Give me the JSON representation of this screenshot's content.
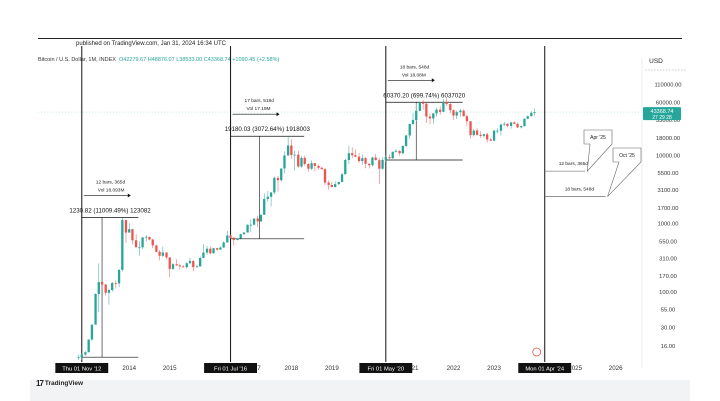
{
  "header": {
    "published": "published on TradingView.com, Jan 31, 2024 16:34 UTC",
    "symbol": "Bitcoin / U.S. Dollar, 1M, INDEX",
    "open": "O42279.67",
    "high": "H48876.07",
    "low": "L38533.00",
    "close": "C43368.74",
    "change": "+1090.45 (+2.58%)"
  },
  "footer": {
    "logo_text": "TradingView",
    "logo_mark": "17"
  },
  "chart_data": {
    "type": "candlestick",
    "currency_label": "USD",
    "y_scale": "log",
    "ylim": [
      10,
      220000
    ],
    "y_ticks": [
      {
        "value": 110000,
        "label": "110000.00"
      },
      {
        "value": 60000,
        "label": "60000.00"
      },
      {
        "value": 33000,
        "label": "33000.00"
      },
      {
        "value": 18000,
        "label": "18000.00"
      },
      {
        "value": 10000,
        "label": "10000.00"
      },
      {
        "value": 5500,
        "label": "5500.00"
      },
      {
        "value": 3100,
        "label": "3100.00"
      },
      {
        "value": 1700,
        "label": "1700.00"
      },
      {
        "value": 1000,
        "label": "1000.00"
      },
      {
        "value": 550,
        "label": "550.00"
      },
      {
        "value": 310,
        "label": "310.00"
      },
      {
        "value": 170,
        "label": "170.00"
      },
      {
        "value": 100,
        "label": "100.00"
      },
      {
        "value": 55,
        "label": "55.00"
      },
      {
        "value": 30,
        "label": "30.00"
      },
      {
        "value": 16,
        "label": "16.00"
      }
    ],
    "price_label": {
      "value": 43368.74,
      "text": "43368.74",
      "subtext": "27 29 28"
    },
    "x_ticks": [
      {
        "t": 2014,
        "label": "2014"
      },
      {
        "t": 2015,
        "label": "2015"
      },
      {
        "t": 2018,
        "label": "2018"
      },
      {
        "t": 2019,
        "label": "2019"
      },
      {
        "t": 2022,
        "label": "2022"
      },
      {
        "t": 2023,
        "label": "2023"
      },
      {
        "t": 2025,
        "label": "2025"
      },
      {
        "t": 2026,
        "label": "2026"
      }
    ],
    "x_tick_fragments": [
      {
        "t": 2016.35,
        "label": "2"
      },
      {
        "t": 2017.2,
        "label": "7"
      },
      {
        "t": 2021.05,
        "label": "21"
      }
    ],
    "xlim": [
      2011.75,
      2026.6
    ],
    "vertical_markers": [
      {
        "t": 2012.83,
        "label": "Thu 01 Nov '12"
      },
      {
        "t": 2016.5,
        "label": "Fri 01 Jul '16"
      },
      {
        "t": 2020.33,
        "label": "Fri 01 May '20"
      },
      {
        "t": 2024.25,
        "label": "Mon 01 Apr '24"
      }
    ],
    "measurements": [
      {
        "t0": 2012.83,
        "t1": 2013.83,
        "low": 11,
        "high": 1231,
        "bars": "12 bars, 365d",
        "vol": "Vol 18.093M",
        "value_text": "1230.82 (11009.49%) 123082"
      },
      {
        "t0": 2016.5,
        "t1": 2017.92,
        "low": 600,
        "high": 19180,
        "bars": "17 bars, 518d",
        "vol": "Vol 17.19M",
        "value_text": "19180.03 (3072.64%) 1918003"
      },
      {
        "t0": 2020.33,
        "t1": 2021.83,
        "low": 8600,
        "high": 60370,
        "bars": "18 bars, 548d",
        "vol": "Vol 18.08M",
        "value_text": "60370.20 (699.74%) 6037020"
      }
    ],
    "projections": [
      {
        "t0": 2024.25,
        "t1": 2025.25,
        "price": 5900,
        "bars": "12 bars, 365d",
        "callout": "Apr '25"
      },
      {
        "t0": 2024.25,
        "t1": 2025.75,
        "price": 2500,
        "bars": "18 bars, 548d",
        "callout": "Oct '25"
      }
    ],
    "colors": {
      "up": "#26a69a",
      "down": "#ef5350",
      "marker": "#111111",
      "price_label": "#26a69a"
    },
    "series": [
      {
        "t": 2012.75,
        "o": 11,
        "h": 12,
        "l": 10,
        "c": 11
      },
      {
        "t": 2012.83,
        "o": 11,
        "h": 12.5,
        "l": 10,
        "c": 12
      },
      {
        "t": 2012.92,
        "o": 12,
        "h": 13.5,
        "l": 11.5,
        "c": 13
      },
      {
        "t": 2013.0,
        "o": 13,
        "h": 20,
        "l": 13,
        "c": 20
      },
      {
        "t": 2013.08,
        "o": 20,
        "h": 33,
        "l": 19,
        "c": 33
      },
      {
        "t": 2013.17,
        "o": 33,
        "h": 95,
        "l": 33,
        "c": 93
      },
      {
        "t": 2013.25,
        "o": 93,
        "h": 260,
        "l": 50,
        "c": 139
      },
      {
        "t": 2013.33,
        "o": 139,
        "h": 140,
        "l": 105,
        "c": 128
      },
      {
        "t": 2013.42,
        "o": 128,
        "h": 130,
        "l": 88,
        "c": 97
      },
      {
        "t": 2013.5,
        "o": 97,
        "h": 110,
        "l": 65,
        "c": 106
      },
      {
        "t": 2013.58,
        "o": 106,
        "h": 140,
        "l": 100,
        "c": 135
      },
      {
        "t": 2013.67,
        "o": 135,
        "h": 147,
        "l": 112,
        "c": 133
      },
      {
        "t": 2013.75,
        "o": 133,
        "h": 215,
        "l": 117,
        "c": 210
      },
      {
        "t": 2013.83,
        "o": 210,
        "h": 1231,
        "l": 200,
        "c": 1130
      },
      {
        "t": 2013.92,
        "o": 1130,
        "h": 1150,
        "l": 520,
        "c": 740
      },
      {
        "t": 2014.0,
        "o": 740,
        "h": 1020,
        "l": 740,
        "c": 830
      },
      {
        "t": 2014.08,
        "o": 830,
        "h": 840,
        "l": 500,
        "c": 570
      },
      {
        "t": 2014.17,
        "o": 570,
        "h": 700,
        "l": 450,
        "c": 450
      },
      {
        "t": 2014.25,
        "o": 450,
        "h": 550,
        "l": 340,
        "c": 450
      },
      {
        "t": 2014.33,
        "o": 450,
        "h": 630,
        "l": 420,
        "c": 630
      },
      {
        "t": 2014.42,
        "o": 630,
        "h": 680,
        "l": 550,
        "c": 640
      },
      {
        "t": 2014.5,
        "o": 640,
        "h": 640,
        "l": 570,
        "c": 585
      },
      {
        "t": 2014.58,
        "o": 585,
        "h": 600,
        "l": 440,
        "c": 480
      },
      {
        "t": 2014.67,
        "o": 480,
        "h": 490,
        "l": 380,
        "c": 386
      },
      {
        "t": 2014.75,
        "o": 386,
        "h": 410,
        "l": 290,
        "c": 338
      },
      {
        "t": 2014.83,
        "o": 338,
        "h": 460,
        "l": 325,
        "c": 378
      },
      {
        "t": 2014.92,
        "o": 378,
        "h": 380,
        "l": 300,
        "c": 320
      },
      {
        "t": 2015.0,
        "o": 320,
        "h": 320,
        "l": 165,
        "c": 217
      },
      {
        "t": 2015.08,
        "o": 217,
        "h": 265,
        "l": 210,
        "c": 254
      },
      {
        "t": 2015.17,
        "o": 254,
        "h": 300,
        "l": 240,
        "c": 244
      },
      {
        "t": 2015.25,
        "o": 244,
        "h": 260,
        "l": 215,
        "c": 236
      },
      {
        "t": 2015.33,
        "o": 236,
        "h": 245,
        "l": 225,
        "c": 230
      },
      {
        "t": 2015.42,
        "o": 230,
        "h": 270,
        "l": 220,
        "c": 263
      },
      {
        "t": 2015.5,
        "o": 263,
        "h": 315,
        "l": 255,
        "c": 284
      },
      {
        "t": 2015.58,
        "o": 284,
        "h": 290,
        "l": 200,
        "c": 230
      },
      {
        "t": 2015.67,
        "o": 230,
        "h": 250,
        "l": 225,
        "c": 236
      },
      {
        "t": 2015.75,
        "o": 236,
        "h": 330,
        "l": 235,
        "c": 314
      },
      {
        "t": 2015.83,
        "o": 314,
        "h": 500,
        "l": 310,
        "c": 377
      },
      {
        "t": 2015.92,
        "o": 377,
        "h": 470,
        "l": 350,
        "c": 430
      },
      {
        "t": 2016.0,
        "o": 430,
        "h": 460,
        "l": 355,
        "c": 368
      },
      {
        "t": 2016.08,
        "o": 368,
        "h": 440,
        "l": 365,
        "c": 437
      },
      {
        "t": 2016.17,
        "o": 437,
        "h": 440,
        "l": 400,
        "c": 416
      },
      {
        "t": 2016.25,
        "o": 416,
        "h": 460,
        "l": 413,
        "c": 448
      },
      {
        "t": 2016.33,
        "o": 448,
        "h": 550,
        "l": 440,
        "c": 530
      },
      {
        "t": 2016.42,
        "o": 530,
        "h": 780,
        "l": 530,
        "c": 670
      },
      {
        "t": 2016.5,
        "o": 670,
        "h": 700,
        "l": 600,
        "c": 624
      },
      {
        "t": 2016.58,
        "o": 624,
        "h": 630,
        "l": 480,
        "c": 575
      },
      {
        "t": 2016.67,
        "o": 575,
        "h": 620,
        "l": 570,
        "c": 609
      },
      {
        "t": 2016.75,
        "o": 609,
        "h": 720,
        "l": 605,
        "c": 700
      },
      {
        "t": 2016.83,
        "o": 700,
        "h": 750,
        "l": 690,
        "c": 742
      },
      {
        "t": 2016.92,
        "o": 742,
        "h": 975,
        "l": 740,
        "c": 963
      },
      {
        "t": 2017.0,
        "o": 963,
        "h": 1150,
        "l": 750,
        "c": 965
      },
      {
        "t": 2017.08,
        "o": 965,
        "h": 1200,
        "l": 940,
        "c": 1190
      },
      {
        "t": 2017.17,
        "o": 1190,
        "h": 1300,
        "l": 890,
        "c": 1080
      },
      {
        "t": 2017.25,
        "o": 1080,
        "h": 1350,
        "l": 1070,
        "c": 1350
      },
      {
        "t": 2017.33,
        "o": 1350,
        "h": 2760,
        "l": 1340,
        "c": 2300
      },
      {
        "t": 2017.42,
        "o": 2300,
        "h": 3000,
        "l": 2100,
        "c": 2480
      },
      {
        "t": 2017.5,
        "o": 2480,
        "h": 2900,
        "l": 1800,
        "c": 2870
      },
      {
        "t": 2017.58,
        "o": 2870,
        "h": 4900,
        "l": 2700,
        "c": 4700
      },
      {
        "t": 2017.67,
        "o": 4700,
        "h": 5000,
        "l": 2950,
        "c": 4340
      },
      {
        "t": 2017.75,
        "o": 4340,
        "h": 6470,
        "l": 4150,
        "c": 6450
      },
      {
        "t": 2017.83,
        "o": 6450,
        "h": 11500,
        "l": 5500,
        "c": 10000
      },
      {
        "t": 2017.92,
        "o": 10000,
        "h": 19180,
        "l": 10000,
        "c": 14000
      },
      {
        "t": 2018.0,
        "o": 14000,
        "h": 17200,
        "l": 9000,
        "c": 10200
      },
      {
        "t": 2018.08,
        "o": 10200,
        "h": 11800,
        "l": 6000,
        "c": 10300
      },
      {
        "t": 2018.17,
        "o": 10300,
        "h": 11700,
        "l": 6600,
        "c": 6900
      },
      {
        "t": 2018.25,
        "o": 6900,
        "h": 9800,
        "l": 6500,
        "c": 9240
      },
      {
        "t": 2018.33,
        "o": 9240,
        "h": 9900,
        "l": 7100,
        "c": 7500
      },
      {
        "t": 2018.42,
        "o": 7500,
        "h": 7800,
        "l": 5800,
        "c": 6400
      },
      {
        "t": 2018.5,
        "o": 6400,
        "h": 8500,
        "l": 6100,
        "c": 7730
      },
      {
        "t": 2018.58,
        "o": 7730,
        "h": 7770,
        "l": 5900,
        "c": 7030
      },
      {
        "t": 2018.67,
        "o": 7030,
        "h": 7400,
        "l": 6200,
        "c": 6600
      },
      {
        "t": 2018.75,
        "o": 6600,
        "h": 6800,
        "l": 6200,
        "c": 6300
      },
      {
        "t": 2018.83,
        "o": 6300,
        "h": 6600,
        "l": 3700,
        "c": 4000
      },
      {
        "t": 2018.92,
        "o": 4000,
        "h": 4300,
        "l": 3150,
        "c": 3700
      },
      {
        "t": 2019.0,
        "o": 3700,
        "h": 4100,
        "l": 3400,
        "c": 3450
      },
      {
        "t": 2019.08,
        "o": 3450,
        "h": 4200,
        "l": 3400,
        "c": 3800
      },
      {
        "t": 2019.17,
        "o": 3800,
        "h": 4100,
        "l": 3700,
        "c": 4100
      },
      {
        "t": 2019.25,
        "o": 4100,
        "h": 5600,
        "l": 4050,
        "c": 5300
      },
      {
        "t": 2019.33,
        "o": 5300,
        "h": 9000,
        "l": 5300,
        "c": 8600
      },
      {
        "t": 2019.42,
        "o": 8600,
        "h": 13900,
        "l": 7500,
        "c": 10800
      },
      {
        "t": 2019.5,
        "o": 10800,
        "h": 13200,
        "l": 9100,
        "c": 10100
      },
      {
        "t": 2019.58,
        "o": 10100,
        "h": 12300,
        "l": 9400,
        "c": 9600
      },
      {
        "t": 2019.67,
        "o": 9600,
        "h": 10900,
        "l": 7800,
        "c": 8300
      },
      {
        "t": 2019.75,
        "o": 8300,
        "h": 10400,
        "l": 7300,
        "c": 9150
      },
      {
        "t": 2019.83,
        "o": 9150,
        "h": 9500,
        "l": 6500,
        "c": 7550
      },
      {
        "t": 2019.92,
        "o": 7550,
        "h": 7700,
        "l": 6450,
        "c": 7200
      },
      {
        "t": 2020.0,
        "o": 7200,
        "h": 9600,
        "l": 6900,
        "c": 9350
      },
      {
        "t": 2020.08,
        "o": 9350,
        "h": 10500,
        "l": 8500,
        "c": 8550
      },
      {
        "t": 2020.17,
        "o": 8550,
        "h": 9200,
        "l": 3850,
        "c": 6400
      },
      {
        "t": 2020.25,
        "o": 6400,
        "h": 9450,
        "l": 6150,
        "c": 8630
      },
      {
        "t": 2020.33,
        "o": 8630,
        "h": 10070,
        "l": 8100,
        "c": 9450
      },
      {
        "t": 2020.42,
        "o": 9450,
        "h": 10400,
        "l": 8900,
        "c": 9140
      },
      {
        "t": 2020.5,
        "o": 9140,
        "h": 11450,
        "l": 8900,
        "c": 11350
      },
      {
        "t": 2020.58,
        "o": 11350,
        "h": 12470,
        "l": 11100,
        "c": 11650
      },
      {
        "t": 2020.67,
        "o": 11650,
        "h": 12050,
        "l": 9900,
        "c": 10780
      },
      {
        "t": 2020.75,
        "o": 10780,
        "h": 14100,
        "l": 10400,
        "c": 13800
      },
      {
        "t": 2020.83,
        "o": 13800,
        "h": 19900,
        "l": 13200,
        "c": 19700
      },
      {
        "t": 2020.92,
        "o": 19700,
        "h": 29300,
        "l": 17600,
        "c": 29000
      },
      {
        "t": 2021.0,
        "o": 29000,
        "h": 41900,
        "l": 28100,
        "c": 33100
      },
      {
        "t": 2021.08,
        "o": 33100,
        "h": 58300,
        "l": 32300,
        "c": 45200
      },
      {
        "t": 2021.17,
        "o": 45200,
        "h": 61800,
        "l": 45000,
        "c": 58800
      },
      {
        "t": 2021.25,
        "o": 58800,
        "h": 64800,
        "l": 47000,
        "c": 57700
      },
      {
        "t": 2021.33,
        "o": 57700,
        "h": 59500,
        "l": 30000,
        "c": 37300
      },
      {
        "t": 2021.42,
        "o": 37300,
        "h": 41300,
        "l": 28800,
        "c": 35000
      },
      {
        "t": 2021.5,
        "o": 35000,
        "h": 42000,
        "l": 29300,
        "c": 41500
      },
      {
        "t": 2021.58,
        "o": 41500,
        "h": 50500,
        "l": 37300,
        "c": 47100
      },
      {
        "t": 2021.67,
        "o": 47100,
        "h": 52900,
        "l": 39600,
        "c": 43800
      },
      {
        "t": 2021.75,
        "o": 43800,
        "h": 67000,
        "l": 43300,
        "c": 61300
      },
      {
        "t": 2021.83,
        "o": 61300,
        "h": 69000,
        "l": 53300,
        "c": 56900
      },
      {
        "t": 2021.92,
        "o": 56900,
        "h": 59000,
        "l": 42000,
        "c": 46200
      },
      {
        "t": 2022.0,
        "o": 46200,
        "h": 47900,
        "l": 33000,
        "c": 38500
      },
      {
        "t": 2022.08,
        "o": 38500,
        "h": 45800,
        "l": 34300,
        "c": 43200
      },
      {
        "t": 2022.17,
        "o": 43200,
        "h": 48200,
        "l": 37200,
        "c": 45500
      },
      {
        "t": 2022.25,
        "o": 45500,
        "h": 47400,
        "l": 37600,
        "c": 37700
      },
      {
        "t": 2022.33,
        "o": 37700,
        "h": 40000,
        "l": 26700,
        "c": 31800
      },
      {
        "t": 2022.42,
        "o": 31800,
        "h": 31900,
        "l": 17600,
        "c": 19900
      },
      {
        "t": 2022.5,
        "o": 19900,
        "h": 24600,
        "l": 18900,
        "c": 23300
      },
      {
        "t": 2022.58,
        "o": 23300,
        "h": 25200,
        "l": 19600,
        "c": 20100
      },
      {
        "t": 2022.67,
        "o": 20100,
        "h": 22800,
        "l": 18200,
        "c": 19400
      },
      {
        "t": 2022.75,
        "o": 19400,
        "h": 20900,
        "l": 18200,
        "c": 20500
      },
      {
        "t": 2022.83,
        "o": 20500,
        "h": 21400,
        "l": 15500,
        "c": 17200
      },
      {
        "t": 2022.92,
        "o": 17200,
        "h": 18400,
        "l": 16300,
        "c": 16500
      },
      {
        "t": 2023.0,
        "o": 16500,
        "h": 23900,
        "l": 16500,
        "c": 23100
      },
      {
        "t": 2023.08,
        "o": 23100,
        "h": 25200,
        "l": 21400,
        "c": 23100
      },
      {
        "t": 2023.17,
        "o": 23100,
        "h": 29100,
        "l": 19600,
        "c": 28500
      },
      {
        "t": 2023.25,
        "o": 28500,
        "h": 31000,
        "l": 26900,
        "c": 29200
      },
      {
        "t": 2023.33,
        "o": 29200,
        "h": 29800,
        "l": 25800,
        "c": 27200
      },
      {
        "t": 2023.42,
        "o": 27200,
        "h": 31400,
        "l": 24800,
        "c": 30500
      },
      {
        "t": 2023.5,
        "o": 30500,
        "h": 31800,
        "l": 28900,
        "c": 29200
      },
      {
        "t": 2023.58,
        "o": 29200,
        "h": 30200,
        "l": 25200,
        "c": 25900
      },
      {
        "t": 2023.67,
        "o": 25900,
        "h": 27500,
        "l": 24900,
        "c": 27000
      },
      {
        "t": 2023.75,
        "o": 27000,
        "h": 35200,
        "l": 26600,
        "c": 34600
      },
      {
        "t": 2023.83,
        "o": 34600,
        "h": 38400,
        "l": 34100,
        "c": 37700
      },
      {
        "t": 2023.92,
        "o": 37700,
        "h": 44700,
        "l": 37600,
        "c": 42300
      },
      {
        "t": 2024.0,
        "o": 42279.67,
        "h": 48876.07,
        "l": 38533.0,
        "c": 43368.74
      }
    ]
  }
}
